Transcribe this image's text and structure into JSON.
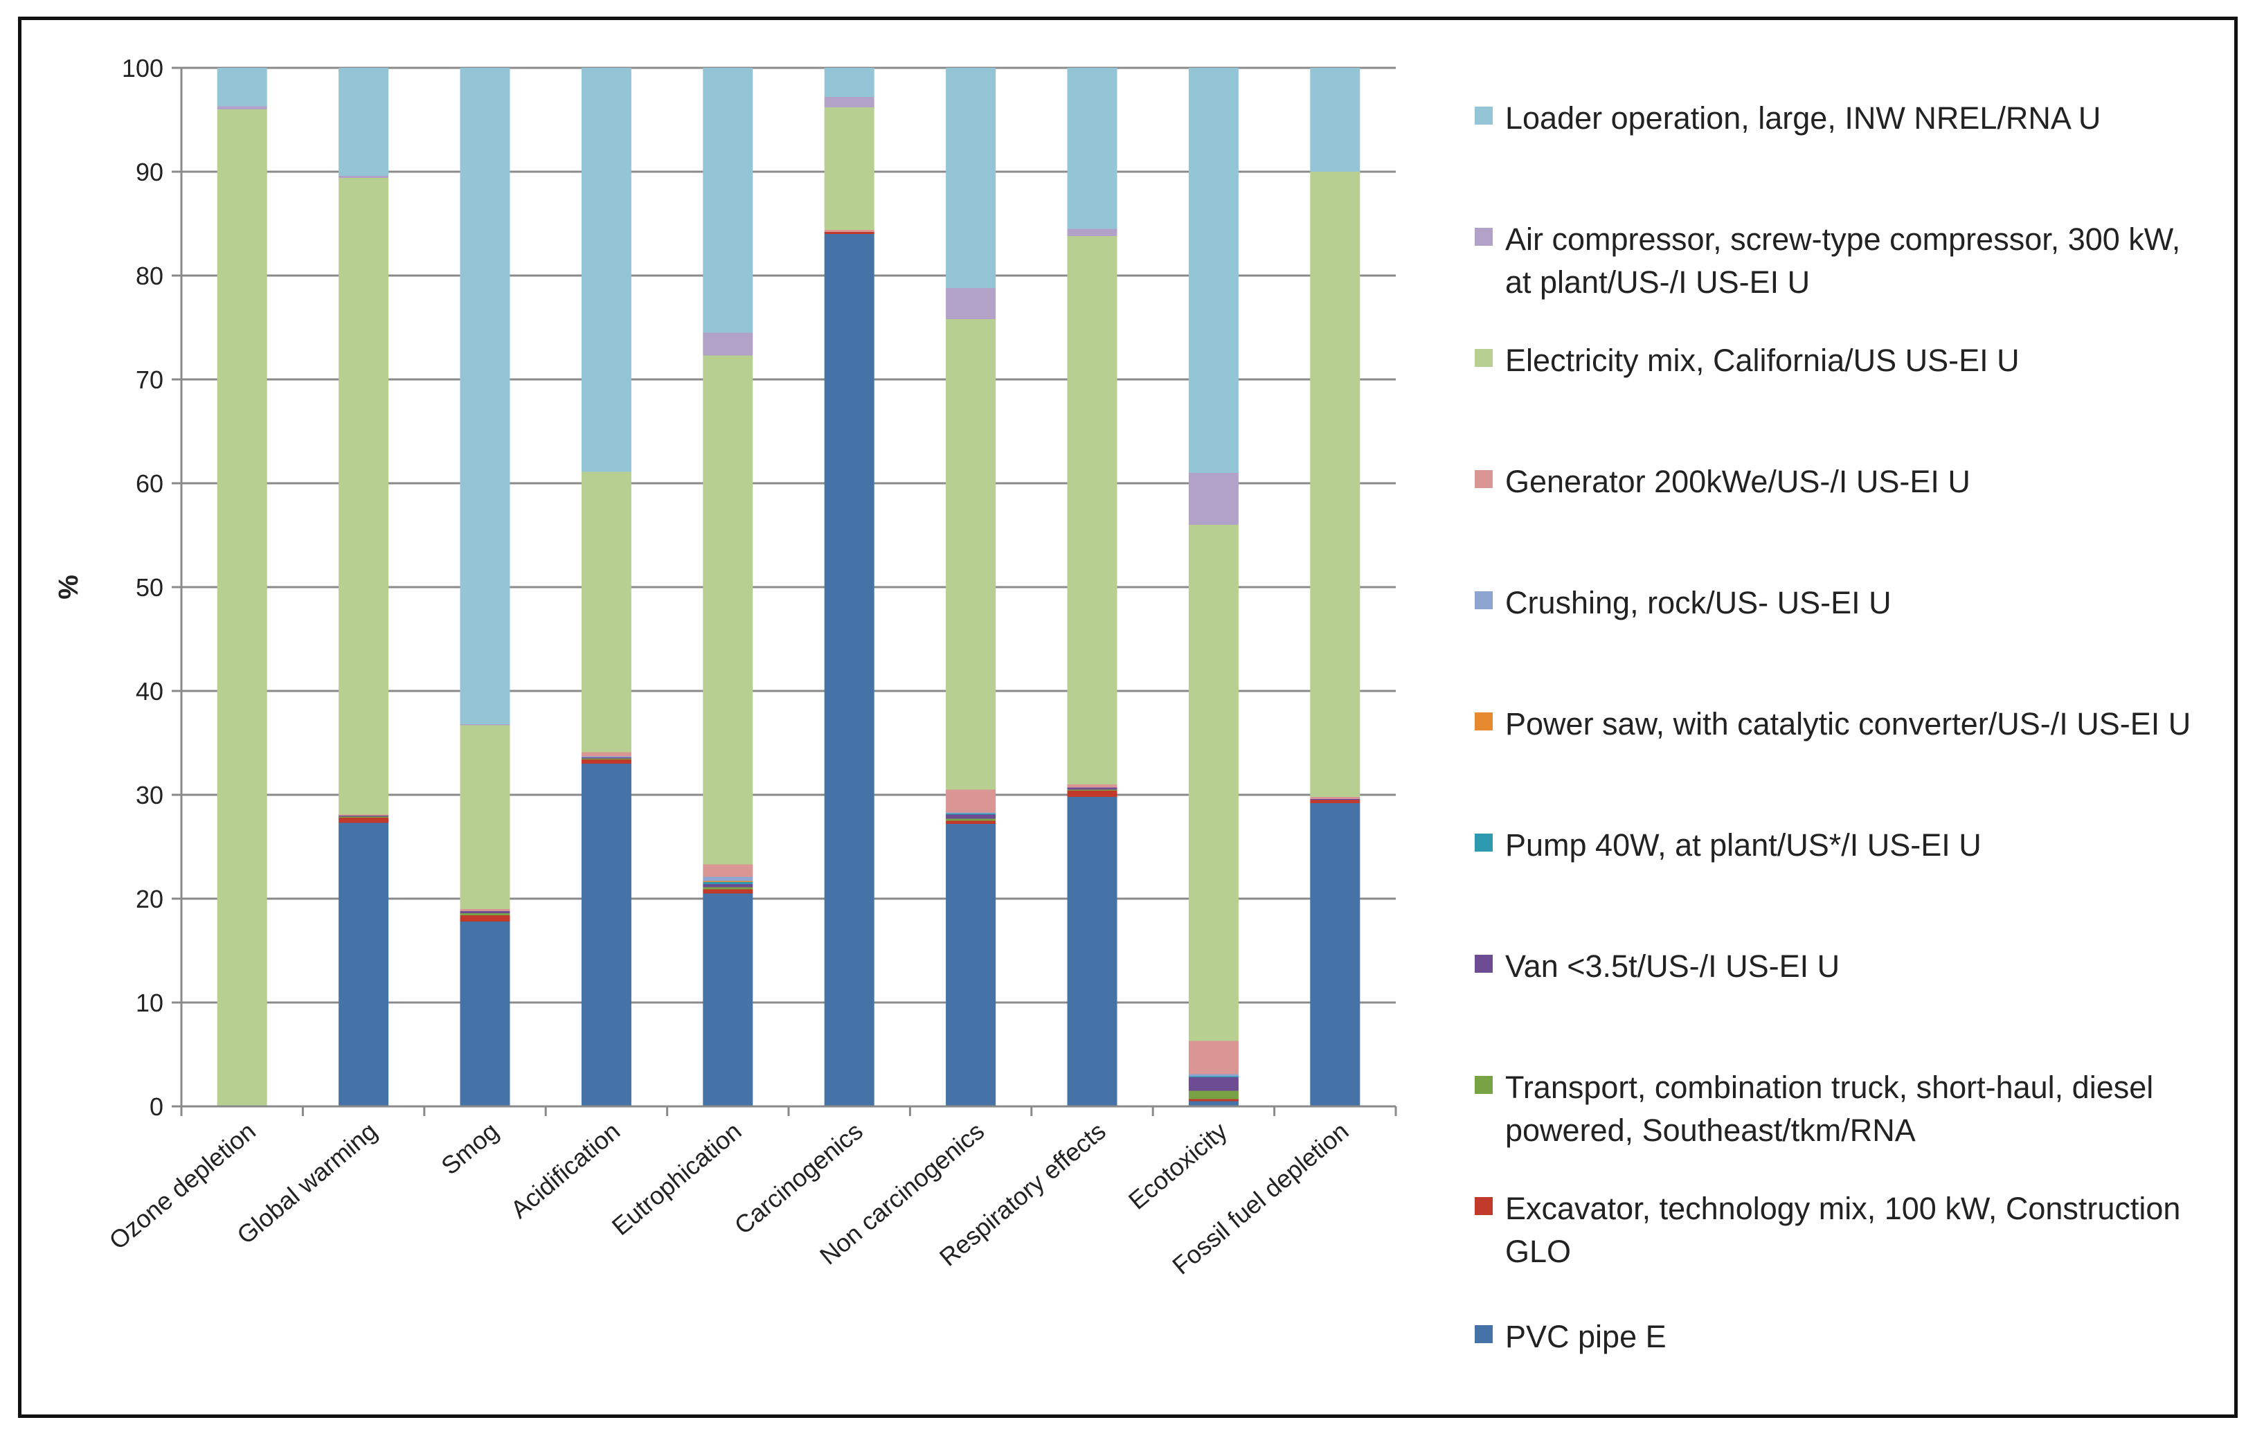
{
  "chart_data": {
    "type": "bar",
    "stacked": true,
    "title": "",
    "xlabel": "",
    "ylabel": "%",
    "ylim": [
      0,
      100
    ],
    "yticks": [
      "0",
      "10",
      "20",
      "30",
      "40",
      "50",
      "60",
      "70",
      "80",
      "90",
      "100"
    ],
    "grid": true,
    "legend_position": "right",
    "categories": [
      "Ozone depletion",
      "Global warming",
      "Smog",
      "Acidification",
      "Eutrophication",
      "Carcinogenics",
      "Non carcinogenics",
      "Respiratory effects",
      "Ecotoxicity",
      "Fossil fuel depletion"
    ],
    "series": [
      {
        "name": "PVC pipe E",
        "color": "#4572A7",
        "values": [
          0,
          27.3,
          17.8,
          33.0,
          20.5,
          84.0,
          27.2,
          29.8,
          0.5,
          29.2
        ]
      },
      {
        "name": "Excavator, technology mix, 100 kW, Construction GLO",
        "color": "#C0392B",
        "values": [
          0,
          0.5,
          0.6,
          0.4,
          0.4,
          0.2,
          0.3,
          0.6,
          0.2,
          0.3
        ]
      },
      {
        "name": "Transport, combination truck, short-haul, diesel powered, Southeast/tkm/RNA",
        "color": "#77A345",
        "values": [
          0,
          0.1,
          0.2,
          0.1,
          0.2,
          0.0,
          0.2,
          0.1,
          0.8,
          0.0
        ]
      },
      {
        "name": "Van <3.5t/US-/I US-EI U",
        "color": "#6E4C93",
        "values": [
          0,
          0.1,
          0.2,
          0.1,
          0.3,
          0.0,
          0.4,
          0.2,
          1.3,
          0.1
        ]
      },
      {
        "name": "Pump 40W, at plant/US*/I US-EI U",
        "color": "#2E9AB0",
        "values": [
          0,
          0.0,
          0.0,
          0.0,
          0.2,
          0.0,
          0.1,
          0.0,
          0.1,
          0.0
        ]
      },
      {
        "name": "Power saw, with catalytic converter/US-/I US-EI U",
        "color": "#E6892F",
        "values": [
          0,
          0.0,
          0.0,
          0.0,
          0.1,
          0.0,
          0.0,
          0.0,
          0.0,
          0.0
        ]
      },
      {
        "name": "Crushing, rock/US- US-EI U",
        "color": "#8EA5D1",
        "values": [
          0,
          0.0,
          0.0,
          0.1,
          0.4,
          0.0,
          0.1,
          0.0,
          0.2,
          0.0
        ]
      },
      {
        "name": "Generator 200kWe/US-/I US-EI U",
        "color": "#DA9694",
        "values": [
          0,
          0.1,
          0.2,
          0.4,
          1.2,
          0.2,
          2.2,
          0.3,
          3.2,
          0.2
        ]
      },
      {
        "name": "Electricity mix, California/US US-EI U",
        "color": "#B7CF91",
        "values": [
          96.0,
          61.3,
          17.7,
          27.0,
          49.0,
          11.8,
          45.3,
          52.8,
          49.7,
          60.2
        ]
      },
      {
        "name": "Air compressor, screw-type compressor, 300 kW, at plant/US-/I US-EI U",
        "color": "#B2A2C7",
        "values": [
          0.3,
          0.2,
          0.1,
          0.0,
          2.2,
          1.0,
          3.0,
          0.7,
          5.0,
          0.0
        ]
      },
      {
        "name": "Loader operation, large, INW NREL/RNA U",
        "color": "#93C5D7",
        "values": [
          3.7,
          10.4,
          63.2,
          38.9,
          25.5,
          2.8,
          21.2,
          15.5,
          39.0,
          10.0
        ]
      }
    ]
  },
  "legend": {
    "items": [
      {
        "label": "Loader operation, large, INW NREL/RNA U",
        "color": "#93C5D7"
      },
      {
        "label": "Air compressor, screw-type compressor, 300 kW, at plant/US-/I US-EI U",
        "color": "#B2A2C7"
      },
      {
        "label": "Electricity mix, California/US US-EI U",
        "color": "#B7CF91"
      },
      {
        "label": "Generator 200kWe/US-/I US-EI U",
        "color": "#DA9694"
      },
      {
        "label": "Crushing, rock/US- US-EI U",
        "color": "#8EA5D1"
      },
      {
        "label": "Power saw, with catalytic converter/US-/I US-EI U",
        "color": "#E6892F"
      },
      {
        "label": "Pump 40W, at plant/US*/I US-EI U",
        "color": "#2E9AB0"
      },
      {
        "label": "Van <3.5t/US-/I US-EI U",
        "color": "#6E4C93"
      },
      {
        "label": "Transport, combination truck, short-haul, diesel powered, Southeast/tkm/RNA",
        "color": "#77A345"
      },
      {
        "label": "Excavator, technology mix, 100 kW, Construction GLO",
        "color": "#C0392B"
      },
      {
        "label": "PVC pipe E",
        "color": "#4572A7"
      }
    ]
  }
}
